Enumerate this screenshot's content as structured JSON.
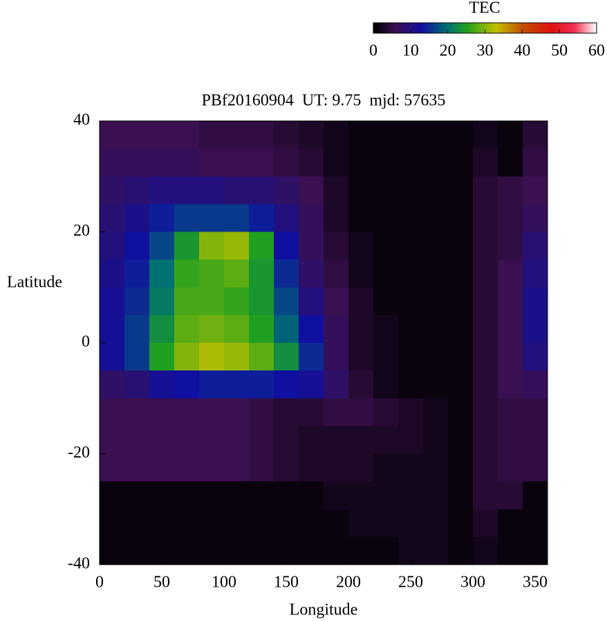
{
  "chart_data": {
    "type": "heatmap",
    "title": "PBf20160904  UT: 9.75  mjd: 57635",
    "xlabel": "Longitude",
    "ylabel": "Latitude",
    "x": [
      10,
      30,
      50,
      70,
      90,
      110,
      130,
      150,
      170,
      190,
      210,
      230,
      250,
      270,
      290,
      310,
      330,
      350
    ],
    "y": [
      37.5,
      32.5,
      27.5,
      22.5,
      17.5,
      12.5,
      7.5,
      2.5,
      -2.5,
      -7.5,
      -12.5,
      -17.5,
      -22.5,
      -27.5,
      -32.5,
      -37.5
    ],
    "values": [
      [
        6,
        6,
        6,
        6,
        5,
        5,
        5,
        4,
        3,
        2,
        1,
        1,
        1,
        1,
        1,
        2,
        1,
        4
      ],
      [
        7,
        7,
        7,
        7,
        6,
        6,
        6,
        5,
        4,
        2,
        1,
        1,
        1,
        1,
        1,
        3,
        1,
        5
      ],
      [
        8,
        9,
        10,
        10,
        10,
        9,
        9,
        8,
        6,
        3,
        1,
        1,
        1,
        1,
        1,
        4,
        5,
        6
      ],
      [
        9,
        11,
        14,
        16,
        16,
        16,
        14,
        10,
        7,
        3,
        1,
        1,
        1,
        1,
        1,
        4,
        5,
        7
      ],
      [
        10,
        13,
        17,
        24,
        30,
        31,
        25,
        13,
        7,
        4,
        2,
        1,
        1,
        1,
        1,
        4,
        5,
        9
      ],
      [
        11,
        14,
        20,
        26,
        27,
        28,
        24,
        15,
        8,
        5,
        2,
        1,
        1,
        1,
        1,
        4,
        6,
        10
      ],
      [
        12,
        15,
        21,
        27,
        27,
        26,
        24,
        17,
        10,
        6,
        3,
        1,
        1,
        1,
        1,
        4,
        6,
        11
      ],
      [
        12,
        16,
        23,
        28,
        29,
        28,
        25,
        19,
        13,
        7,
        3,
        2,
        1,
        1,
        1,
        4,
        6,
        11
      ],
      [
        12,
        16,
        25,
        30,
        32,
        31,
        28,
        23,
        15,
        7,
        3,
        2,
        1,
        1,
        1,
        4,
        6,
        10
      ],
      [
        8,
        9,
        12,
        13,
        14,
        14,
        14,
        13,
        12,
        8,
        4,
        2,
        1,
        1,
        1,
        4,
        6,
        7
      ],
      [
        6,
        6,
        6,
        6,
        6,
        6,
        5,
        4,
        4,
        5,
        5,
        4,
        3,
        2,
        1,
        4,
        5,
        5
      ],
      [
        6,
        6,
        6,
        6,
        6,
        6,
        5,
        4,
        3,
        3,
        3,
        3,
        3,
        2,
        1,
        4,
        5,
        5
      ],
      [
        6,
        6,
        6,
        6,
        6,
        6,
        5,
        4,
        3,
        3,
        3,
        2,
        2,
        2,
        1,
        4,
        5,
        5
      ],
      [
        1,
        1,
        1,
        1,
        1,
        1,
        1,
        1,
        1,
        2,
        2,
        2,
        2,
        2,
        1,
        4,
        4,
        1
      ],
      [
        1,
        1,
        1,
        1,
        1,
        1,
        1,
        1,
        1,
        1,
        2,
        2,
        2,
        2,
        1,
        3,
        1,
        1
      ],
      [
        1,
        1,
        1,
        1,
        1,
        1,
        1,
        1,
        1,
        1,
        1,
        1,
        2,
        2,
        1,
        2,
        1,
        1
      ]
    ],
    "xlim": [
      0,
      360
    ],
    "ylim": [
      -40,
      40
    ],
    "xticks": [
      0,
      50,
      100,
      150,
      200,
      250,
      300,
      350
    ],
    "yticks": [
      -40,
      -20,
      0,
      20,
      40
    ],
    "colorbar": {
      "title": "TEC",
      "lim": [
        0,
        60
      ],
      "ticks": [
        0,
        10,
        20,
        30,
        40,
        50,
        60
      ]
    },
    "colormap": [
      {
        "value": 0,
        "color": "#000000"
      },
      {
        "value": 6,
        "color": "#3a1050"
      },
      {
        "value": 13,
        "color": "#1010a0"
      },
      {
        "value": 20,
        "color": "#007070"
      },
      {
        "value": 25,
        "color": "#20a020"
      },
      {
        "value": 33,
        "color": "#c0c000"
      },
      {
        "value": 40,
        "color": "#c05000"
      },
      {
        "value": 48,
        "color": "#e01010"
      },
      {
        "value": 54,
        "color": "#f03050"
      },
      {
        "value": 60,
        "color": "#ffffff"
      }
    ]
  }
}
